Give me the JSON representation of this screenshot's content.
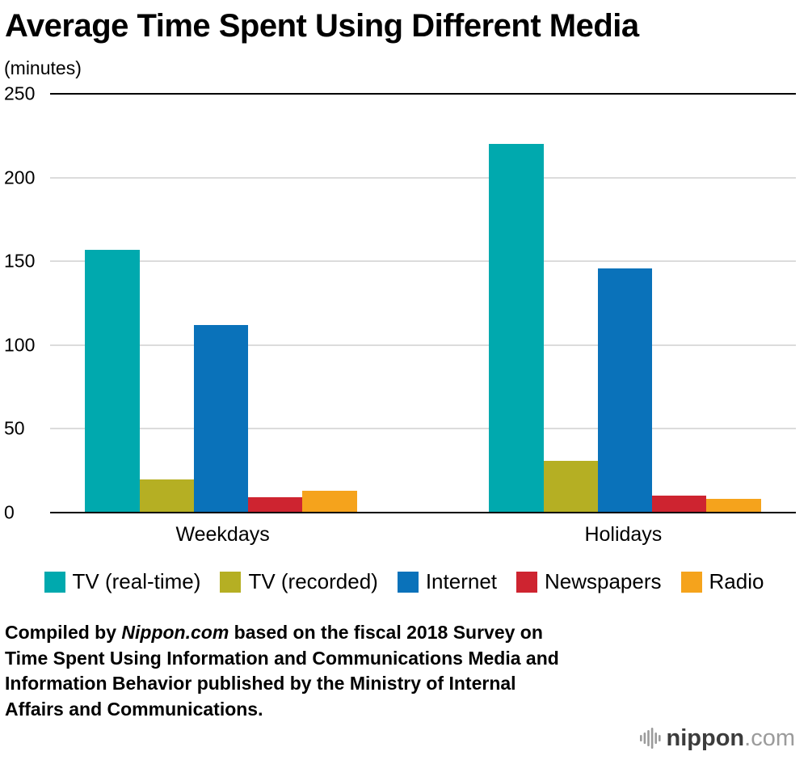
{
  "chart_data": {
    "type": "bar",
    "title": "Average Time Spent Using Different Media",
    "ylabel": "(minutes)",
    "xlabel": "",
    "categories": [
      "Weekdays",
      "Holidays"
    ],
    "series": [
      {
        "name": "TV (real-time)",
        "color": "#00a9ae",
        "values": [
          157,
          220
        ]
      },
      {
        "name": "TV (recorded)",
        "color": "#b5af23",
        "values": [
          20,
          31
        ]
      },
      {
        "name": "Internet",
        "color": "#0a72ba",
        "values": [
          112,
          146
        ]
      },
      {
        "name": "Newspapers",
        "color": "#ce2430",
        "values": [
          9,
          10
        ]
      },
      {
        "name": "Radio",
        "color": "#f5a31c",
        "values": [
          13,
          8
        ]
      }
    ],
    "ylim": [
      0,
      250
    ],
    "y_ticks": [
      0,
      50,
      100,
      150,
      200,
      250
    ],
    "grid": true,
    "legend_position": "bottom"
  },
  "caption": {
    "line1_prefix": "Compiled by ",
    "line1_italic": "Nippon.com",
    "line1_rest": " based on the fiscal 2018 Survey on",
    "line2": "Time Spent Using Information and Communications Media and",
    "line3": "Information Behavior published by the Ministry of Internal",
    "line4": "Affairs and Communications."
  },
  "logo": {
    "name": "nippon",
    "tld": ".com"
  }
}
